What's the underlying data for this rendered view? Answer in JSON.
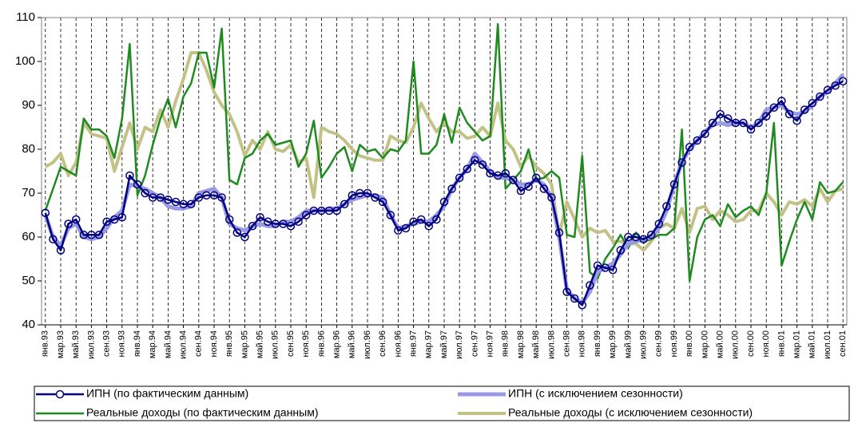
{
  "chart_data": {
    "type": "line",
    "categories": [
      "янв.93",
      null,
      "мар.93",
      null,
      "май.93",
      null,
      "июл.93",
      null,
      "сен.93",
      null,
      "ноя.93",
      null,
      "янв.94",
      null,
      "мар.94",
      null,
      "май.94",
      null,
      "июл.94",
      null,
      "сен.94",
      null,
      "ноя.94",
      null,
      "янв.95",
      null,
      "мар.95",
      null,
      "май.95",
      null,
      "июл.95",
      null,
      "сен.95",
      null,
      "ноя.95",
      null,
      "янв.96",
      null,
      "мар.96",
      null,
      "май.96",
      null,
      "июл.96",
      null,
      "сен.96",
      null,
      "ноя.96",
      null,
      "янв.97",
      null,
      "мар.97",
      null,
      "май.97",
      null,
      "июл.97",
      null,
      "сен.97",
      null,
      "ноя.97",
      null,
      "янв.98",
      null,
      "мар.98",
      null,
      "май.98",
      null,
      "июл.98",
      null,
      "сен.98",
      null,
      "ноя.98",
      null,
      "янв.99",
      null,
      "мар.99",
      null,
      "май.99",
      null,
      "июл.99",
      null,
      "сен.99",
      null,
      "ноя.99",
      null,
      "янв.00",
      null,
      "мар.00",
      null,
      "май.00",
      null,
      "июл.00",
      null,
      "сен.00",
      null,
      "ноя.00",
      null,
      "янв.01",
      null,
      "мар.01",
      null,
      "май.01",
      null,
      "июл.01",
      null,
      "сен.01"
    ],
    "series": [
      {
        "name": "ИПН (по фактическим данным)",
        "color": "#000080",
        "markers": true,
        "width": 2.5,
        "values": [
          65.5,
          59.5,
          57,
          63,
          64,
          60.5,
          60.5,
          60.5,
          63.5,
          64,
          64.5,
          74,
          72,
          70,
          69,
          69,
          68.5,
          68,
          67.5,
          67.5,
          69,
          69.5,
          69.5,
          69,
          64,
          61,
          60,
          62.5,
          64.5,
          63.5,
          63,
          63,
          62.5,
          63.5,
          65,
          66,
          66,
          66,
          66,
          67.5,
          69.5,
          70,
          70,
          69,
          68,
          65,
          61.5,
          62,
          63.5,
          64,
          62.5,
          64,
          68,
          71,
          73.5,
          75.5,
          77.5,
          76.5,
          74.5,
          74,
          74.5,
          73,
          70.5,
          71.5,
          73.5,
          71,
          69,
          61,
          47.5,
          46,
          44.5,
          49,
          53.5,
          53,
          52.5,
          57,
          60,
          60,
          59.5,
          60.5,
          63,
          67,
          72,
          77,
          80.5,
          82,
          83.5,
          86,
          88,
          87,
          86,
          86,
          84.5,
          86,
          87.5,
          89.5,
          91,
          88,
          86.5,
          89,
          90.5,
          92,
          93.5,
          94.5,
          95.5
        ]
      },
      {
        "name": "ИПН (с исключением сезонности)",
        "color": "#9999e6",
        "markers": false,
        "width": 5,
        "values": [
          65,
          60,
          58,
          62,
          63,
          60,
          59.5,
          60,
          62,
          64.5,
          66,
          72,
          71.5,
          71,
          70,
          69,
          67,
          66.5,
          66.5,
          67,
          70,
          70.5,
          71,
          69,
          63,
          62,
          61.5,
          62.5,
          63,
          62.5,
          62.5,
          63.5,
          63.5,
          64.5,
          66,
          66,
          66,
          66.5,
          66.5,
          67.5,
          68.5,
          69,
          69.5,
          69.5,
          69,
          65,
          62,
          62.5,
          63,
          63.5,
          63.5,
          65,
          67,
          71,
          73.5,
          75.5,
          79,
          77,
          75,
          73.5,
          73.5,
          73,
          72,
          72,
          73,
          72,
          69,
          60,
          48,
          46,
          45,
          47.5,
          52,
          53,
          54,
          56,
          58.5,
          59,
          59.5,
          60,
          62,
          66,
          72,
          77,
          80,
          82,
          84,
          85.5,
          86,
          85.5,
          86,
          86,
          85,
          86,
          89,
          89.5,
          90,
          88.5,
          88,
          88.5,
          90,
          92,
          93,
          95,
          97
        ]
      },
      {
        "name": "Реальные доходы (по фактическим данным)",
        "color": "#1f8a1f",
        "markers": false,
        "width": 2.5,
        "values": [
          66,
          71,
          76,
          75,
          74,
          87,
          84.5,
          84.5,
          83,
          78,
          87,
          104,
          69.5,
          74,
          81,
          87,
          91.5,
          85,
          92,
          95,
          102,
          102,
          94,
          107.5,
          73,
          72,
          78,
          79,
          82,
          83.5,
          81,
          81.5,
          82,
          76,
          79,
          86.5,
          73.5,
          76,
          79,
          80.5,
          75,
          81,
          79.5,
          80,
          78,
          80,
          79.5,
          82,
          100,
          79,
          79,
          81,
          88,
          81.5,
          89.5,
          86,
          84,
          82,
          83,
          108.5,
          71,
          73,
          75,
          80,
          73,
          73.5,
          75,
          73.5,
          60.5,
          60,
          78.5,
          52,
          50.5,
          55,
          57.5,
          60.5,
          57.5,
          61,
          59,
          59.5,
          60.5,
          60.5,
          62,
          84.5,
          50,
          60,
          64,
          65,
          62.5,
          67.5,
          64.5,
          66,
          67,
          65,
          70,
          86,
          53.5,
          59,
          64,
          68,
          64,
          72.5,
          70,
          70.5,
          72.5
        ]
      },
      {
        "name": "Реальные доходы (с исключением сезонности)",
        "color": "#c2c287",
        "markers": false,
        "width": 4,
        "values": [
          76,
          77,
          79,
          74,
          77,
          86,
          83.5,
          83,
          82.5,
          75,
          80.5,
          86,
          80,
          85,
          84,
          89,
          85,
          91,
          96,
          102,
          102,
          98,
          93,
          90,
          88,
          84,
          78.5,
          82,
          80,
          84,
          80,
          79.5,
          81,
          77,
          78,
          69,
          85,
          84,
          83.5,
          82,
          80,
          78.5,
          78,
          77.5,
          77.5,
          83,
          82,
          81.5,
          85,
          90.5,
          87,
          84,
          86,
          84,
          84,
          82.5,
          83,
          85,
          83,
          90.5,
          82,
          80,
          76,
          78.5,
          76,
          74.5,
          72,
          60.5,
          68,
          64,
          60,
          62,
          61,
          61.5,
          59,
          59,
          58.5,
          58.5,
          57,
          59,
          62,
          63,
          62,
          66.5,
          61,
          66.5,
          67,
          64,
          66,
          65,
          63.5,
          64,
          66,
          66,
          70,
          68,
          65,
          68,
          67.5,
          68.5,
          67,
          71,
          68,
          70.5,
          71
        ]
      }
    ],
    "ylim": [
      40,
      110
    ],
    "yticks": [
      40,
      50,
      60,
      70,
      80,
      90,
      100,
      110
    ],
    "grid": "x-dashed",
    "legend": "bottom"
  }
}
